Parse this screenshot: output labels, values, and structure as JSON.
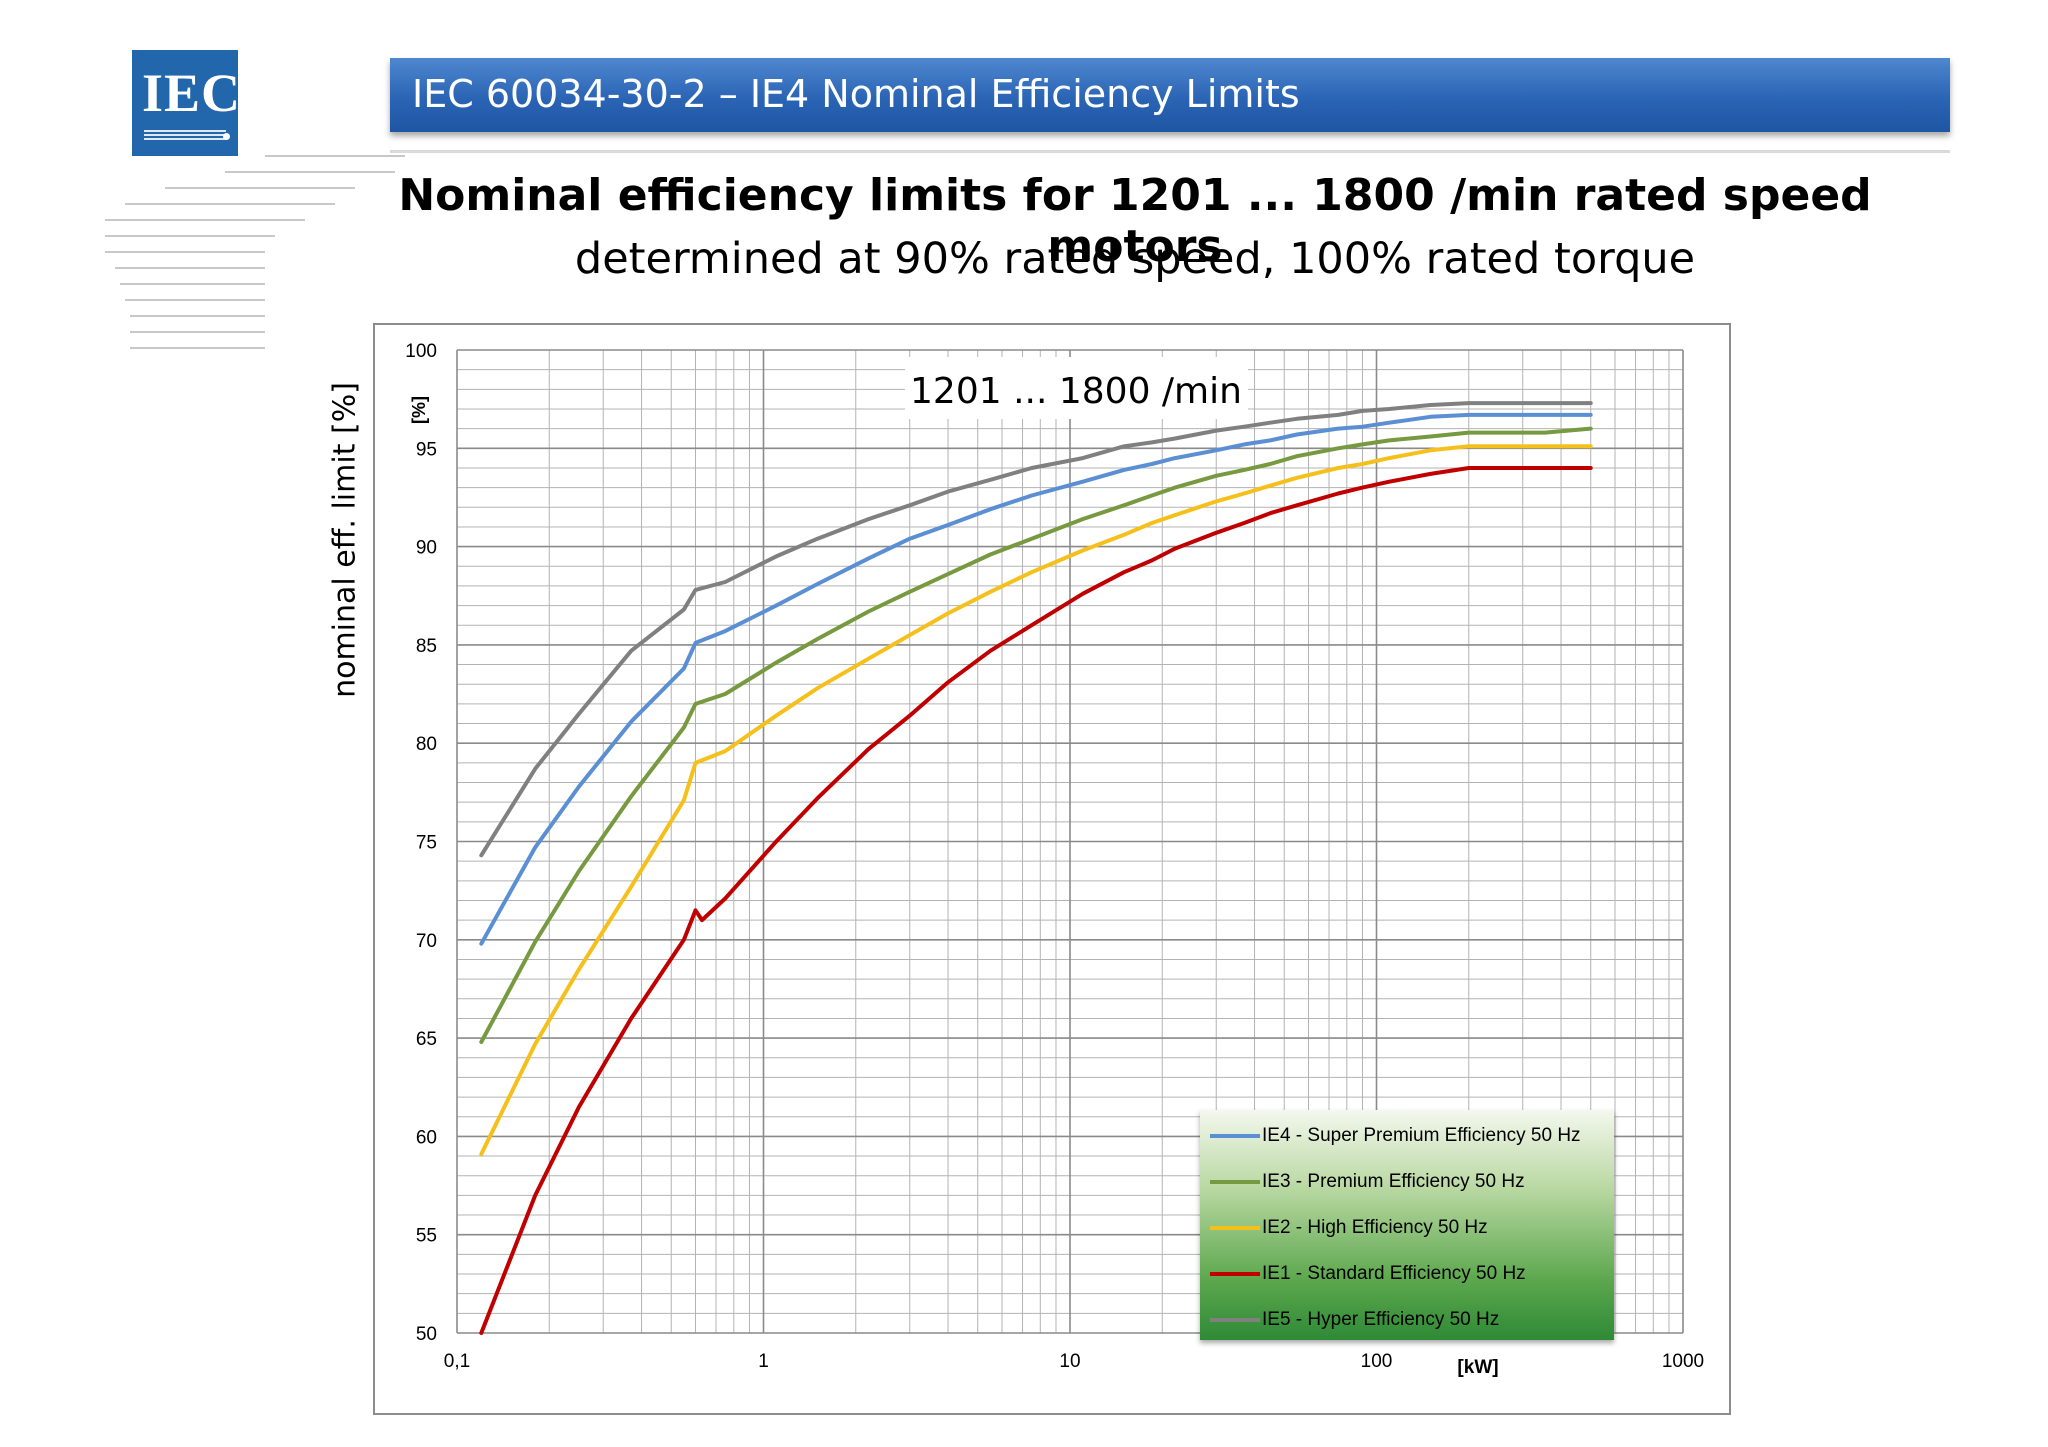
{
  "logo": {
    "text": "IEC"
  },
  "header": {
    "title": "IEC 60034-30-2 – IE4 Nominal Efficiency Limits"
  },
  "title": "Nominal efficiency limits for 1201 ... 1800 /min rated speed motors",
  "subtitle": "determined at 90% rated speed, 100% rated torque",
  "colors": {
    "ie4": "#5b8fd4",
    "ie3": "#77993f",
    "ie2": "#f5c01c",
    "ie1": "#c00000",
    "ie5": "#808080"
  },
  "chart_data": {
    "type": "line",
    "title": "",
    "annotation": "1201 ... 1800 /min",
    "ylabel": "nominal eff. limit [%]",
    "ylabel_inner": "[%]",
    "xlabel": "[kW]",
    "x_scale": "log",
    "xlim": [
      0.1,
      1000
    ],
    "ylim": [
      50,
      100
    ],
    "x_ticks": [
      0.1,
      1,
      10,
      100,
      1000
    ],
    "x_tick_labels": [
      "0,1",
      "1",
      "10",
      "100",
      "1000"
    ],
    "y_ticks": [
      50,
      55,
      60,
      65,
      70,
      75,
      80,
      85,
      90,
      95,
      100
    ],
    "y_tick_labels": [
      "50",
      "55",
      "60",
      "65",
      "70",
      "75",
      "80",
      "85",
      "90",
      "95",
      "100"
    ],
    "grid": true,
    "legend_position": "bottom-right",
    "series": [
      {
        "key": "ie4",
        "name": "IE4 - Super Premium Efficiency 50 Hz",
        "x": [
          0.12,
          0.18,
          0.25,
          0.37,
          0.55,
          0.6,
          0.75,
          1.1,
          1.5,
          2.2,
          3,
          4,
          5.5,
          7.5,
          11,
          15,
          18.5,
          22,
          30,
          37,
          45,
          55,
          75,
          90,
          110,
          150,
          200,
          250,
          315,
          355,
          500
        ],
        "y": [
          69.8,
          74.7,
          77.8,
          81.1,
          83.8,
          85.1,
          85.7,
          87.0,
          88.1,
          89.4,
          90.4,
          91.1,
          91.9,
          92.6,
          93.3,
          93.9,
          94.2,
          94.5,
          94.9,
          95.2,
          95.4,
          95.7,
          96.0,
          96.1,
          96.3,
          96.6,
          96.7,
          96.7,
          96.7,
          96.7,
          96.7
        ]
      },
      {
        "key": "ie3",
        "name": "IE3 - Premium Efficiency  50 Hz",
        "x": [
          0.12,
          0.18,
          0.25,
          0.37,
          0.55,
          0.6,
          0.75,
          1.1,
          1.5,
          2.2,
          3,
          4,
          5.5,
          7.5,
          11,
          15,
          18.5,
          22,
          30,
          37,
          45,
          55,
          75,
          90,
          110,
          150,
          200,
          250,
          315,
          355,
          500
        ],
        "y": [
          64.8,
          69.9,
          73.5,
          77.3,
          80.8,
          82.0,
          82.5,
          84.1,
          85.3,
          86.7,
          87.7,
          88.6,
          89.6,
          90.4,
          91.4,
          92.1,
          92.6,
          93.0,
          93.6,
          93.9,
          94.2,
          94.6,
          95.0,
          95.2,
          95.4,
          95.6,
          95.8,
          95.8,
          95.8,
          95.8,
          96.0
        ]
      },
      {
        "key": "ie2",
        "name": "IE2 - High Efficiency 50 Hz",
        "x": [
          0.12,
          0.18,
          0.25,
          0.37,
          0.55,
          0.6,
          0.75,
          1.1,
          1.5,
          2.2,
          3,
          4,
          5.5,
          7.5,
          11,
          15,
          18.5,
          22,
          30,
          37,
          45,
          55,
          75,
          90,
          110,
          150,
          200,
          250,
          315,
          355,
          500
        ],
        "y": [
          59.1,
          64.7,
          68.5,
          72.7,
          77.1,
          79.0,
          79.6,
          81.4,
          82.8,
          84.3,
          85.5,
          86.6,
          87.7,
          88.7,
          89.8,
          90.6,
          91.2,
          91.6,
          92.3,
          92.7,
          93.1,
          93.5,
          94.0,
          94.2,
          94.5,
          94.9,
          95.1,
          95.1,
          95.1,
          95.1,
          95.1
        ]
      },
      {
        "key": "ie1",
        "name": "IE1 - Standard Efficiency 50 Hz",
        "x": [
          0.12,
          0.18,
          0.25,
          0.37,
          0.55,
          0.6,
          0.63,
          0.75,
          1.1,
          1.5,
          2.2,
          3,
          4,
          5.5,
          7.5,
          11,
          15,
          18.5,
          22,
          30,
          37,
          45,
          55,
          75,
          90,
          110,
          150,
          200,
          250,
          315,
          355,
          500
        ],
        "y": [
          50.0,
          57.0,
          61.5,
          66.0,
          70.0,
          71.5,
          71.0,
          72.1,
          75.0,
          77.2,
          79.7,
          81.4,
          83.1,
          84.7,
          86.0,
          87.6,
          88.7,
          89.3,
          89.9,
          90.7,
          91.2,
          91.7,
          92.1,
          92.7,
          93.0,
          93.3,
          93.7,
          94.0,
          94.0,
          94.0,
          94.0,
          94.0
        ]
      },
      {
        "key": "ie5",
        "name": "IE5 - Hyper Efficiency  50 Hz",
        "x": [
          0.12,
          0.18,
          0.25,
          0.37,
          0.55,
          0.6,
          0.75,
          1.1,
          1.5,
          2.2,
          3,
          4,
          5.5,
          7.5,
          11,
          15,
          18.5,
          22,
          30,
          37,
          45,
          55,
          75,
          90,
          110,
          150,
          200,
          250,
          315,
          355,
          500
        ],
        "y": [
          74.3,
          78.7,
          81.5,
          84.7,
          86.8,
          87.8,
          88.2,
          89.5,
          90.4,
          91.4,
          92.1,
          92.8,
          93.4,
          94.0,
          94.5,
          95.1,
          95.3,
          95.5,
          95.9,
          96.1,
          96.3,
          96.5,
          96.7,
          96.9,
          97.0,
          97.2,
          97.3,
          97.3,
          97.3,
          97.3,
          97.3
        ]
      }
    ]
  }
}
